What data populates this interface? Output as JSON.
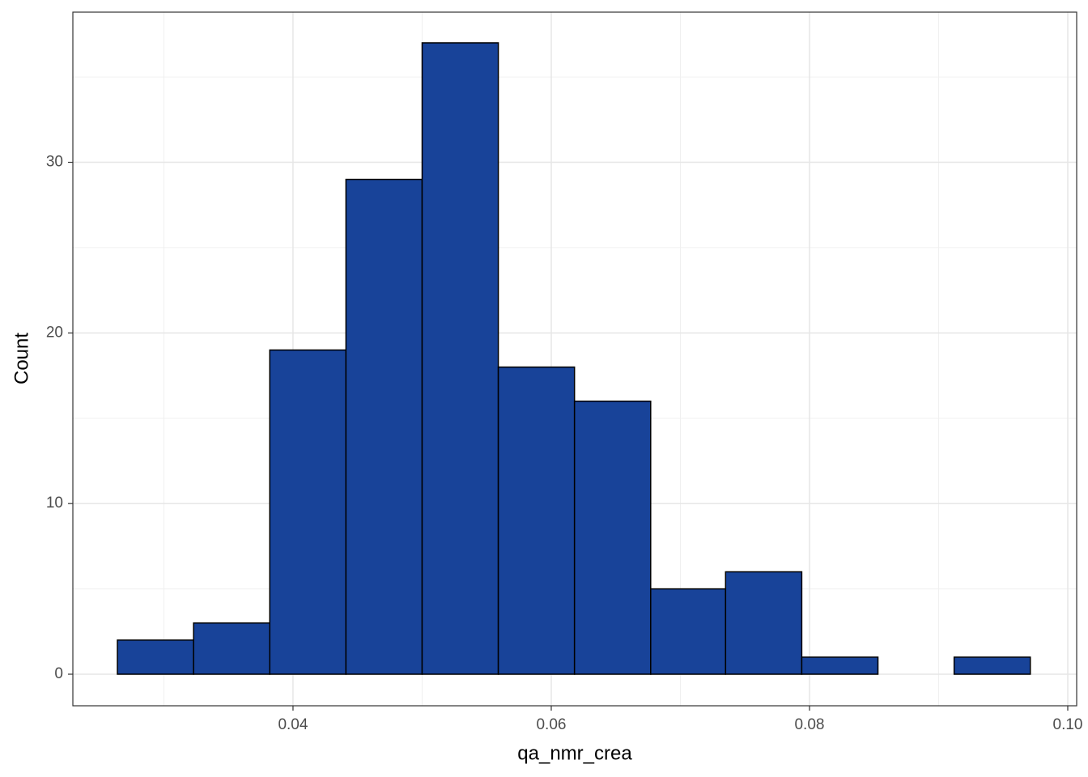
{
  "chart_data": {
    "type": "histogram",
    "x_label": "qa_nmr_crea",
    "y_label": "Count",
    "bins": [
      0.0264,
      0.0323,
      0.0382,
      0.0441,
      0.05,
      0.0559,
      0.0618,
      0.0677,
      0.0735,
      0.0794,
      0.0853,
      0.0912,
      0.0971
    ],
    "values": [
      2,
      3,
      19,
      29,
      37,
      18,
      16,
      5,
      6,
      1,
      0,
      1
    ],
    "color": "#184399",
    "edgecolor": "#000000",
    "xlim": [
      0.02295,
      0.10069
    ],
    "xticks": [
      0.04,
      0.06,
      0.08,
      {
        "value": 0.1,
        "label": "0.10"
      }
    ],
    "ylim": [
      -1.85,
      38.8
    ],
    "yticks": [
      0,
      10,
      20,
      30
    ],
    "grid": true,
    "minor_grid": true
  }
}
